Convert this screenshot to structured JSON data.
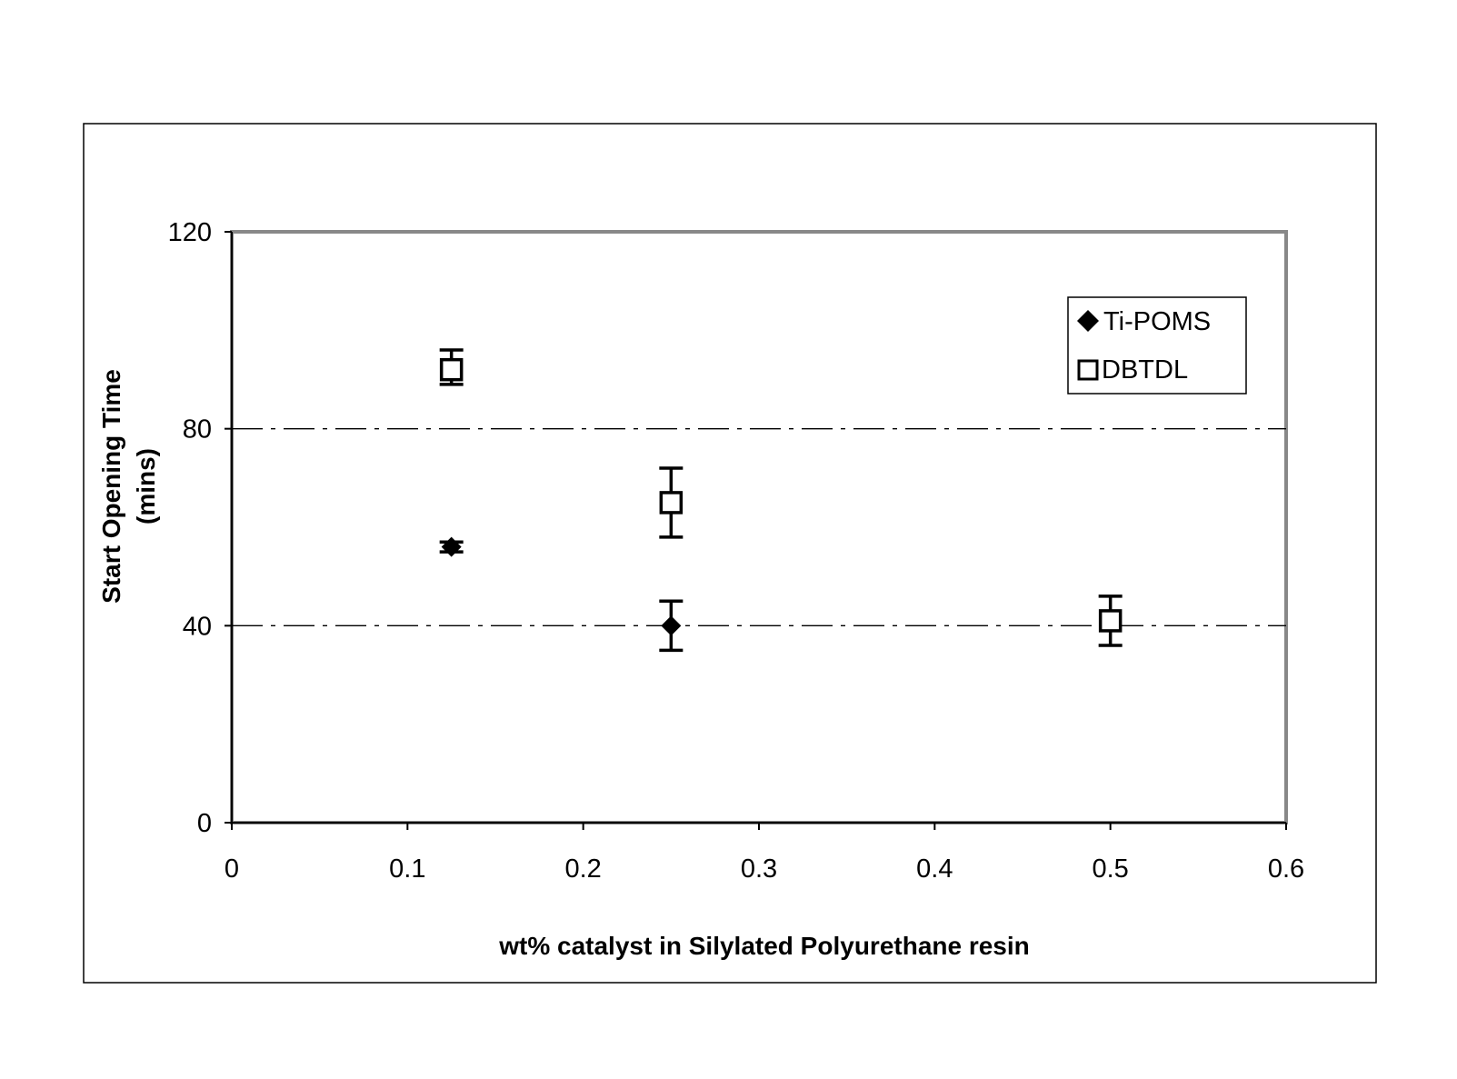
{
  "chart_data": {
    "type": "scatter",
    "xlabel": "wt% catalyst in Silylated Polyurethane resin",
    "ylabel_line1": "Start Opening Time",
    "ylabel_line2": "(mins)",
    "xlim": [
      0,
      0.6
    ],
    "ylim": [
      0,
      120
    ],
    "x_ticks": [
      "0",
      "0.1",
      "0.2",
      "0.3",
      "0.4",
      "0.5",
      "0.6"
    ],
    "y_ticks": [
      "0",
      "40",
      "80",
      "120"
    ],
    "gridlines_y": [
      40,
      80
    ],
    "grid_style": "dash-dot",
    "legend_position": "top-right",
    "series": [
      {
        "name": "Ti-POMS",
        "marker": "filled-diamond",
        "color": "#000000",
        "points": [
          {
            "x": 0.125,
            "y": 56,
            "err_low": 1,
            "err_high": 1
          },
          {
            "x": 0.25,
            "y": 40,
            "err_low": 5,
            "err_high": 5
          }
        ]
      },
      {
        "name": "DBTDL",
        "marker": "open-square",
        "color": "#000000",
        "points": [
          {
            "x": 0.125,
            "y": 92,
            "err_low": 3,
            "err_high": 4
          },
          {
            "x": 0.25,
            "y": 65,
            "err_low": 7,
            "err_high": 7
          },
          {
            "x": 0.5,
            "y": 41,
            "err_low": 5,
            "err_high": 5
          }
        ]
      }
    ]
  }
}
